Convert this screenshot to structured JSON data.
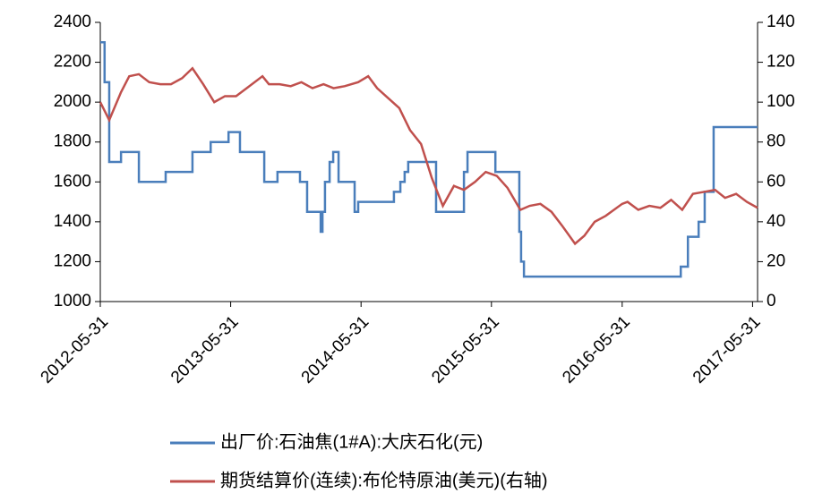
{
  "chart_data": {
    "type": "line",
    "xlim": [
      "2012-05-31",
      "2017-06-14"
    ],
    "xticks": [
      "2012-05-31",
      "2013-05-31",
      "2014-05-31",
      "2015-05-31",
      "2016-05-31",
      "2017-05-31"
    ],
    "ylim": [
      1000,
      2400
    ],
    "yticks": [
      1000,
      1200,
      1400,
      1600,
      1800,
      2000,
      2200,
      2400
    ],
    "y2lim": [
      0,
      140
    ],
    "y2ticks": [
      0,
      20,
      40,
      60,
      80,
      100,
      120,
      140
    ],
    "legend": "bottom",
    "series": [
      {
        "name": "出厂价:石油焦(1#A):大庆石化(元)",
        "color": "#4a7ebb",
        "step": true,
        "x": [
          "2012-05-31",
          "2012-06-12",
          "2012-06-25",
          "2012-07-28",
          "2012-09-16",
          "2012-11-30",
          "2013-02-13",
          "2013-04-05",
          "2013-05-25",
          "2013-06-26",
          "2013-09-02",
          "2013-10-09",
          "2013-12-11",
          "2013-12-31",
          "2014-02-07",
          "2014-02-12",
          "2014-02-19",
          "2014-03-04",
          "2014-03-14",
          "2014-03-29",
          "2014-05-13",
          "2014-05-23",
          "2014-06-22",
          "2014-08-31",
          "2014-09-18",
          "2014-09-30",
          "2014-10-10",
          "2014-12-27",
          "2015-03-15",
          "2015-03-25",
          "2015-06-11",
          "2015-08-17",
          "2015-08-22",
          "2015-08-30",
          "2015-12-08",
          "2016-11-11",
          "2016-12-01",
          "2016-12-31",
          "2017-01-17",
          "2017-02-11",
          "2017-06-14"
        ],
        "values": [
          2300,
          2100,
          1700,
          1750,
          1600,
          1650,
          1750,
          1800,
          1850,
          1750,
          1600,
          1650,
          1600,
          1450,
          1350,
          1450,
          1600,
          1700,
          1750,
          1600,
          1450,
          1500,
          1500,
          1550,
          1600,
          1650,
          1700,
          1450,
          1650,
          1750,
          1650,
          1350,
          1200,
          1125,
          1125,
          1175,
          1325,
          1400,
          1550,
          1875,
          1875
        ]
      },
      {
        "name": "期货结算价(连续):布伦特原油(美元)(右轴)",
        "color": "#c0504d",
        "axis": "y2",
        "x": [
          "2012-05-31",
          "2012-06-25",
          "2012-07-28",
          "2012-08-20",
          "2012-09-16",
          "2012-10-15",
          "2012-11-15",
          "2012-12-15",
          "2013-01-15",
          "2013-02-13",
          "2013-03-15",
          "2013-04-15",
          "2013-05-15",
          "2013-06-15",
          "2013-07-15",
          "2013-08-28",
          "2013-09-15",
          "2013-10-15",
          "2013-11-15",
          "2013-12-15",
          "2014-01-15",
          "2014-02-15",
          "2014-03-15",
          "2014-04-15",
          "2014-05-23",
          "2014-06-20",
          "2014-07-15",
          "2014-08-15",
          "2014-09-15",
          "2014-10-15",
          "2014-11-15",
          "2014-12-15",
          "2015-01-15",
          "2015-02-15",
          "2015-03-15",
          "2015-04-15",
          "2015-05-15",
          "2015-06-15",
          "2015-07-15",
          "2015-08-20",
          "2015-09-15",
          "2015-10-15",
          "2015-11-15",
          "2015-12-15",
          "2016-01-20",
          "2016-02-15",
          "2016-03-15",
          "2016-04-15",
          "2016-05-31",
          "2016-06-15",
          "2016-07-15",
          "2016-08-15",
          "2016-09-15",
          "2016-10-15",
          "2016-11-15",
          "2016-12-15",
          "2017-01-15",
          "2017-02-15",
          "2017-03-15",
          "2017-04-15",
          "2017-05-15",
          "2017-06-14"
        ],
        "values": [
          100,
          91,
          105,
          113,
          114,
          110,
          109,
          109,
          112,
          117,
          109,
          100,
          103,
          103,
          107,
          113,
          109,
          109,
          108,
          110,
          107,
          109,
          107,
          108,
          110,
          113,
          107,
          102,
          97,
          86,
          79,
          62,
          48,
          58,
          56,
          60,
          65,
          63,
          57,
          46,
          48,
          49,
          45,
          38,
          29,
          33,
          40,
          43,
          49,
          50,
          46,
          48,
          47,
          51,
          46,
          54,
          55,
          56,
          52,
          54,
          50,
          47
        ]
      }
    ]
  }
}
